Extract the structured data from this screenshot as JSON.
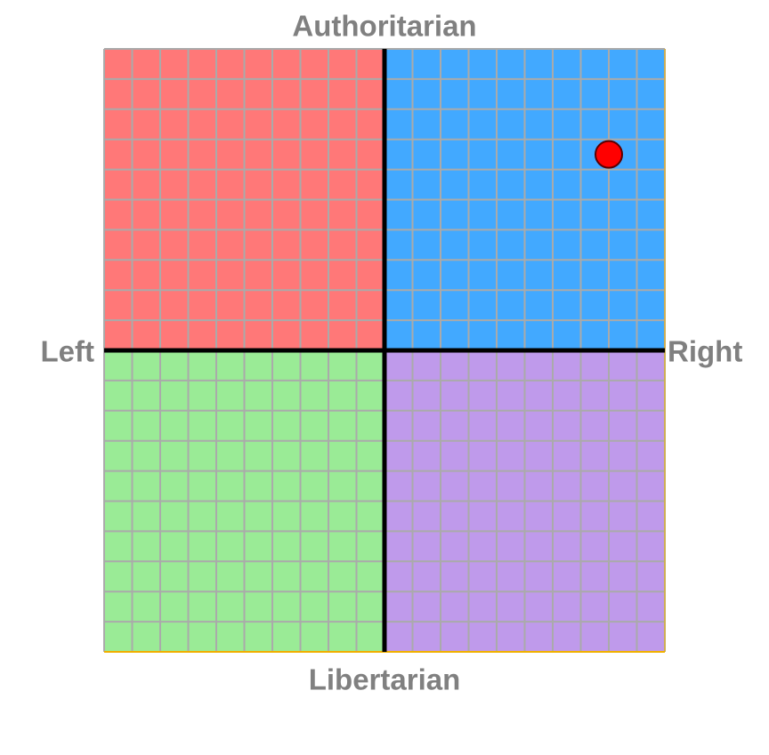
{
  "chart_data": {
    "type": "scatter",
    "labels": {
      "top": "Authoritarian",
      "bottom": "Libertarian",
      "left": "Left",
      "right": "Right"
    },
    "x": [
      8
    ],
    "values": [
      6.5
    ],
    "color": "#ff0000",
    "xlim": [
      -10,
      10
    ],
    "ylim": [
      -10,
      10
    ],
    "xticks": [
      -10,
      -9,
      -8,
      -7,
      -6,
      -5,
      -4,
      -3,
      -2,
      -1,
      0,
      1,
      2,
      3,
      4,
      5,
      6,
      7,
      8,
      9,
      10
    ],
    "yticks": [
      -10,
      -9,
      -8,
      -7,
      -6,
      -5,
      -4,
      -3,
      -2,
      -1,
      0,
      1,
      2,
      3,
      4,
      5,
      6,
      7,
      8,
      9,
      10
    ],
    "grid": true,
    "quadrant_colors": {
      "top_left": "#ff7878",
      "top_right": "#42a9ff",
      "bottom_left": "#9aeb96",
      "bottom_right": "#bf9aeb"
    }
  }
}
